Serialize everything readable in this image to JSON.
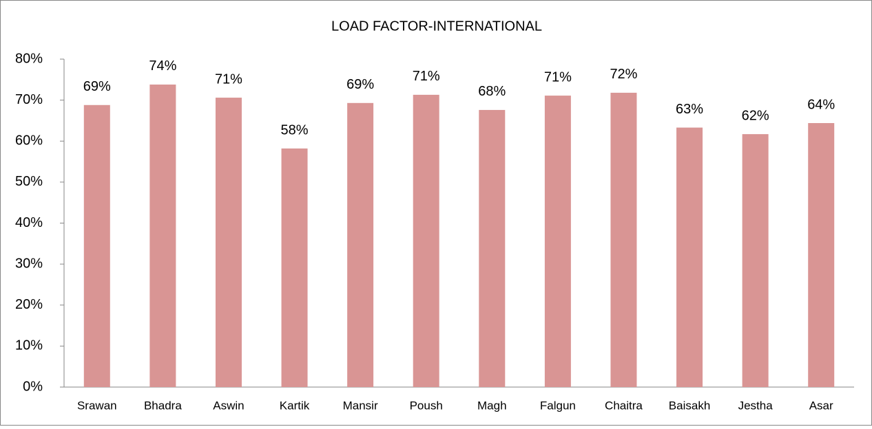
{
  "chart_data": {
    "type": "bar",
    "title": "LOAD FACTOR-INTERNATIONAL",
    "categories": [
      "Srawan",
      "Bhadra",
      "Aswin",
      "Kartik",
      "Mansir",
      "Poush",
      "Magh",
      "Falgun",
      "Chaitra",
      "Baisakh",
      "Jestha",
      "Asar"
    ],
    "values": [
      68.8,
      73.8,
      70.6,
      58.2,
      69.3,
      71.3,
      67.6,
      71.1,
      71.8,
      63.3,
      61.7,
      64.4
    ],
    "value_labels": [
      "69%",
      "74%",
      "71%",
      "58%",
      "69%",
      "71%",
      "68%",
      "71%",
      "72%",
      "63%",
      "62%",
      "64%"
    ],
    "color": "#d99594",
    "ylim": [
      0,
      80
    ],
    "yticks": [
      {
        "value": 0,
        "label": "0%"
      },
      {
        "value": 10,
        "label": "10%"
      },
      {
        "value": 20,
        "label": "20%"
      },
      {
        "value": 30,
        "label": "30%"
      },
      {
        "value": 40,
        "label": "40%"
      },
      {
        "value": 50,
        "label": "50%"
      },
      {
        "value": 60,
        "label": "60%"
      },
      {
        "value": 70,
        "label": "70%"
      },
      {
        "value": 80,
        "label": "80%"
      }
    ],
    "grid": false
  }
}
